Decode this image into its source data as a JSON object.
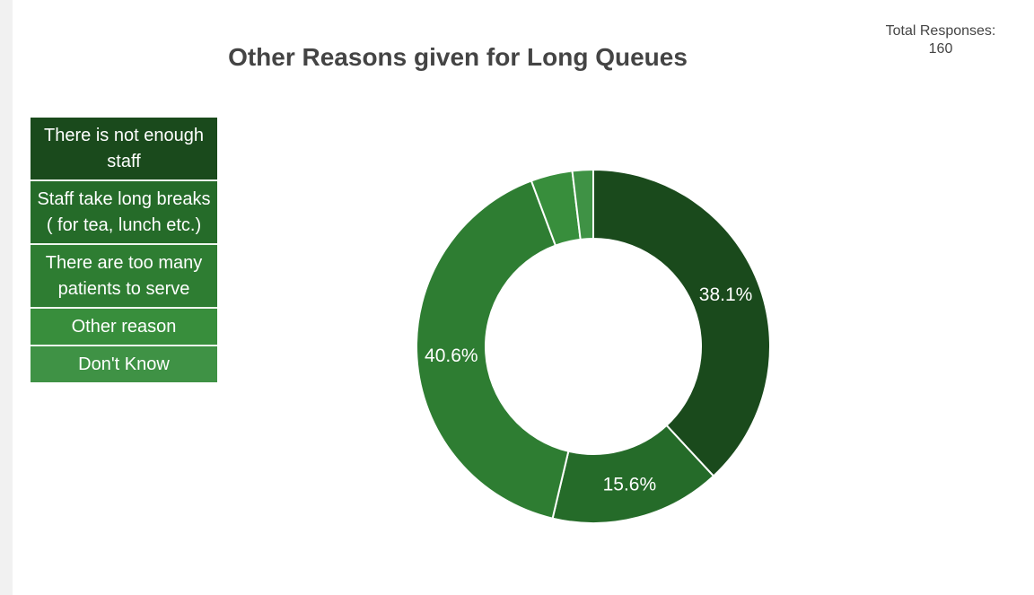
{
  "chart_data": {
    "type": "pie",
    "title": "Other Reasons given for Long Queues",
    "total_label": "Total Responses:",
    "total_value": "160",
    "categories": [
      "There is not enough staff",
      "Staff take long breaks ( for tea, lunch etc.)",
      "There are too many patients to serve",
      "Other reason",
      "Don't Know"
    ],
    "values": [
      38.1,
      15.6,
      40.6,
      3.8,
      1.9
    ],
    "labels": [
      "38.1%",
      "15.6%",
      "40.6%",
      "",
      ""
    ],
    "colors": [
      "#1a4a1c",
      "#256b29",
      "#2e7d32",
      "#388e3c",
      "#3f9245"
    ],
    "donut": true,
    "legend_position": "left"
  }
}
